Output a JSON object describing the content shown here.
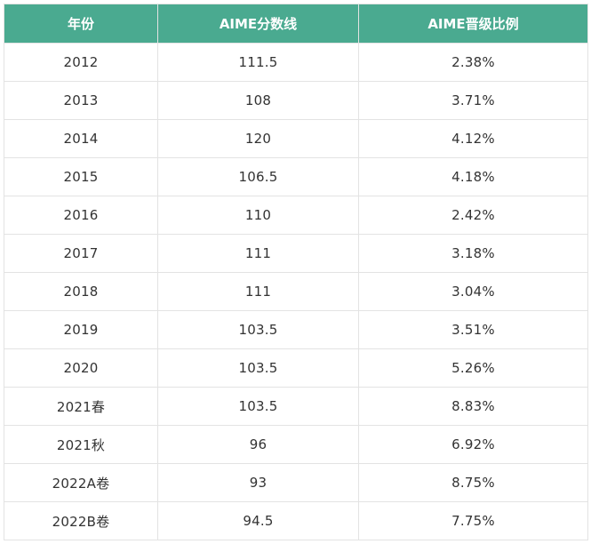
{
  "table": {
    "headers": [
      "年份",
      "AIME分数线",
      "AIME晋级比例"
    ],
    "rows": [
      [
        "2012",
        "111.5",
        "2.38%"
      ],
      [
        "2013",
        "108",
        "3.71%"
      ],
      [
        "2014",
        "120",
        "4.12%"
      ],
      [
        "2015",
        "106.5",
        "4.18%"
      ],
      [
        "2016",
        "110",
        "2.42%"
      ],
      [
        "2017",
        "111",
        "3.18%"
      ],
      [
        "2018",
        "111",
        "3.04%"
      ],
      [
        "2019",
        "103.5",
        "3.51%"
      ],
      [
        "2020",
        "103.5",
        "5.26%"
      ],
      [
        "2021春",
        "103.5",
        "8.83%"
      ],
      [
        "2021秋",
        "96",
        "6.92%"
      ],
      [
        "2022A卷",
        "93",
        "8.75%"
      ],
      [
        "2022B卷",
        "94.5",
        "7.75%"
      ]
    ]
  },
  "colors": {
    "header_bg": "#4aaa90",
    "header_text": "#ffffff",
    "body_text": "#333333",
    "border": "#e3e3e3"
  }
}
